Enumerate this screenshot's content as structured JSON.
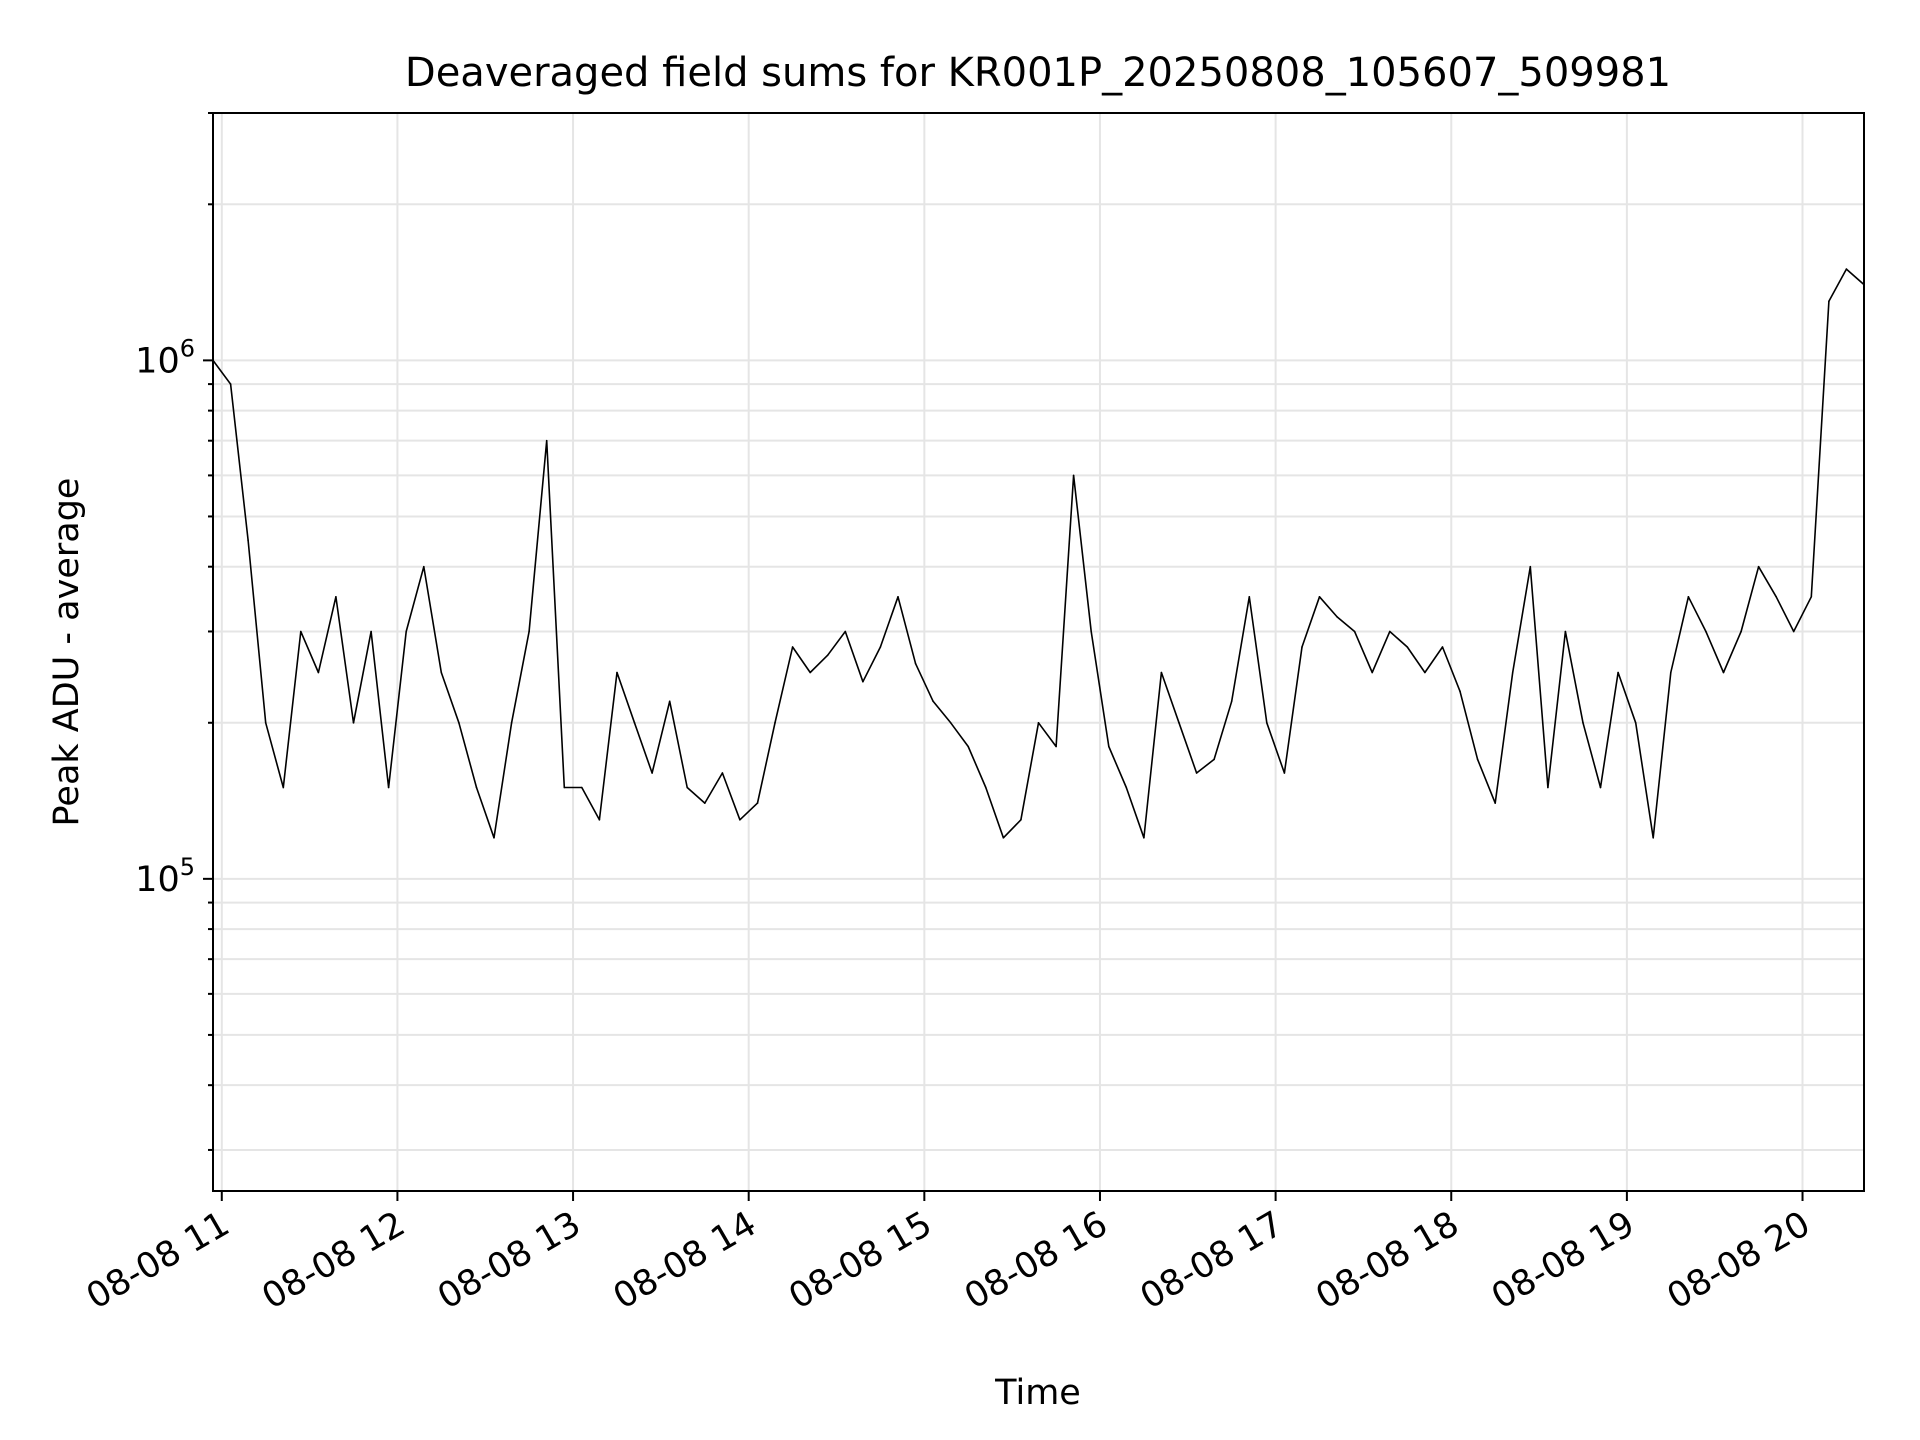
{
  "chart_data": {
    "type": "line",
    "title": "Deaveraged field sums for KR001P_20250808_105607_509981",
    "xlabel": "Time",
    "ylabel": "Peak ADU - average",
    "yscale": "log",
    "xlim": [
      "08-08 10:57",
      "08-08 20:21"
    ],
    "ylim": [
      25000,
      3000000
    ],
    "x_ticks": [
      "08-08 11",
      "08-08 12",
      "08-08 13",
      "08-08 14",
      "08-08 15",
      "08-08 16",
      "08-08 17",
      "08-08 18",
      "08-08 19",
      "08-08 20"
    ],
    "y_ticks": [
      {
        "base": "10",
        "exp": "5",
        "value": 100000
      },
      {
        "base": "10",
        "exp": "6",
        "value": 1000000
      }
    ],
    "grid": true,
    "line_color": "#000000",
    "series": [
      {
        "x_unit": "hours since 08-08 00:00",
        "x": [
          10.95,
          11.05,
          11.15,
          11.25,
          11.35,
          11.45,
          11.55,
          11.65,
          11.75,
          11.85,
          11.95,
          12.05,
          12.15,
          12.25,
          12.35,
          12.45,
          12.55,
          12.65,
          12.75,
          12.85,
          12.95,
          13.05,
          13.15,
          13.25,
          13.35,
          13.45,
          13.55,
          13.65,
          13.75,
          13.85,
          13.95,
          14.05,
          14.15,
          14.25,
          14.35,
          14.45,
          14.55,
          14.65,
          14.75,
          14.85,
          14.95,
          15.05,
          15.15,
          15.25,
          15.35,
          15.45,
          15.55,
          15.65,
          15.75,
          15.85,
          15.95,
          16.05,
          16.15,
          16.25,
          16.35,
          16.45,
          16.55,
          16.65,
          16.75,
          16.85,
          16.95,
          17.05,
          17.15,
          17.25,
          17.35,
          17.45,
          17.55,
          17.65,
          17.75,
          17.85,
          17.95,
          18.05,
          18.15,
          18.25,
          18.35,
          18.45,
          18.55,
          18.65,
          18.75,
          18.85,
          18.95,
          19.05,
          19.15,
          19.25,
          19.35,
          19.45,
          19.55,
          19.65,
          19.75,
          19.85,
          19.95,
          20.05,
          20.15,
          20.25,
          20.35
        ],
        "y": [
          1000000,
          900000,
          450000,
          200000,
          150000,
          300000,
          250000,
          350000,
          200000,
          300000,
          150000,
          300000,
          400000,
          250000,
          200000,
          150000,
          120000,
          200000,
          300000,
          700000,
          150000,
          150000,
          130000,
          250000,
          200000,
          160000,
          220000,
          150000,
          140000,
          160000,
          130000,
          140000,
          200000,
          280000,
          250000,
          270000,
          300000,
          240000,
          280000,
          350000,
          260000,
          220000,
          200000,
          180000,
          150000,
          120000,
          130000,
          200000,
          180000,
          600000,
          300000,
          180000,
          150000,
          120000,
          250000,
          200000,
          160000,
          170000,
          220000,
          350000,
          200000,
          160000,
          280000,
          350000,
          320000,
          300000,
          250000,
          300000,
          280000,
          250000,
          280000,
          230000,
          170000,
          140000,
          250000,
          400000,
          150000,
          300000,
          200000,
          150000,
          250000,
          200000,
          120000,
          250000,
          350000,
          300000,
          250000,
          300000,
          400000,
          350000,
          300000,
          350000,
          1300000,
          1500000,
          1400000
        ]
      }
    ]
  }
}
